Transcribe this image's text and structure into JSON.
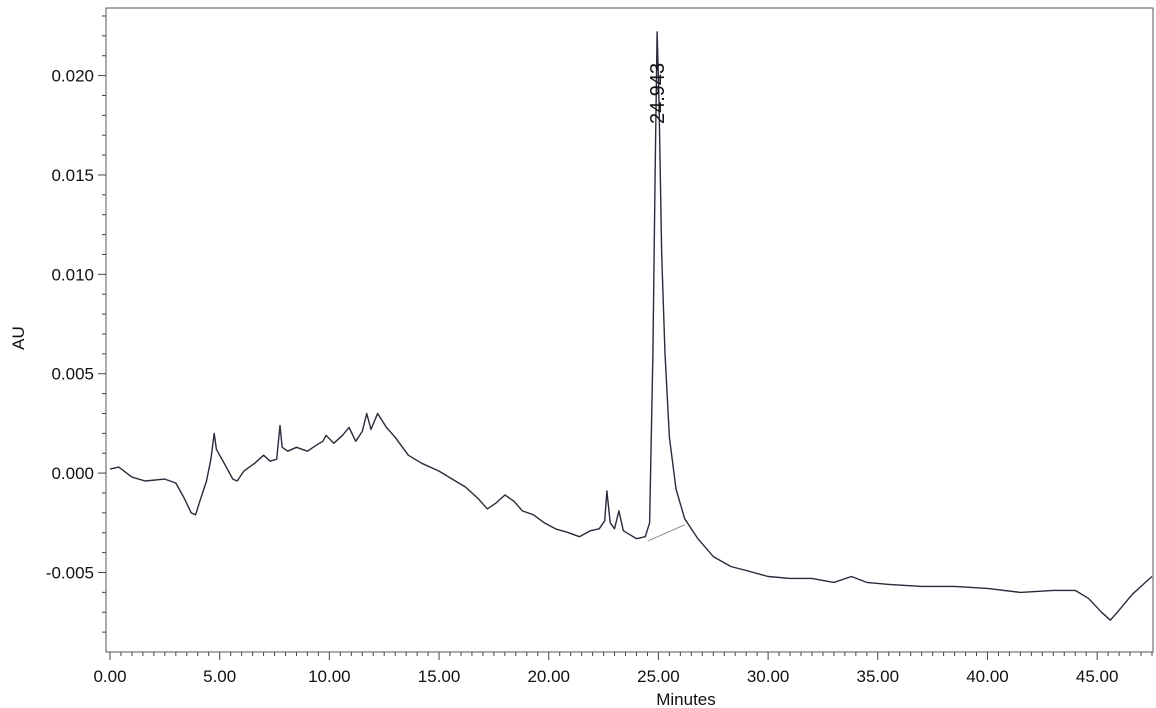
{
  "chart_data": {
    "type": "line",
    "title": "",
    "xlabel": "Minutes",
    "ylabel": "AU",
    "xlim": [
      0,
      47.5
    ],
    "ylim": [
      -0.0088,
      0.0232
    ],
    "x_ticks": [
      0,
      5,
      10,
      15,
      20,
      25,
      30,
      35,
      40,
      45
    ],
    "x_tick_labels": [
      "0.00",
      "5.00",
      "10.00",
      "15.00",
      "20.00",
      "25.00",
      "30.00",
      "35.00",
      "40.00",
      "45.00"
    ],
    "y_ticks": [
      -0.005,
      0,
      0.005,
      0.01,
      0.015,
      0.02
    ],
    "y_tick_labels": [
      "-0.005",
      "0.000",
      "0.005",
      "0.010",
      "0.015",
      "0.020"
    ],
    "grid": false,
    "legend": "none",
    "series": [
      {
        "color": "#2a2a3a",
        "points": [
          [
            0.0,
            0.0002
          ],
          [
            0.4,
            0.0003
          ],
          [
            1.0,
            -0.0002
          ],
          [
            1.6,
            -0.0004
          ],
          [
            2.5,
            -0.0003
          ],
          [
            3.0,
            -0.0005
          ],
          [
            3.4,
            -0.0013
          ],
          [
            3.7,
            -0.002
          ],
          [
            3.9,
            -0.0021
          ],
          [
            4.1,
            -0.0014
          ],
          [
            4.4,
            -0.0004
          ],
          [
            4.6,
            0.0007
          ],
          [
            4.75,
            0.002
          ],
          [
            4.85,
            0.0012
          ],
          [
            5.0,
            0.0009
          ],
          [
            5.3,
            0.0003
          ],
          [
            5.6,
            -0.0003
          ],
          [
            5.8,
            -0.0004
          ],
          [
            6.1,
            0.0001
          ],
          [
            6.6,
            0.0005
          ],
          [
            7.0,
            0.0009
          ],
          [
            7.3,
            0.0006
          ],
          [
            7.6,
            0.0007
          ],
          [
            7.75,
            0.0024
          ],
          [
            7.85,
            0.0013
          ],
          [
            8.1,
            0.0011
          ],
          [
            8.5,
            0.0013
          ],
          [
            9.0,
            0.0011
          ],
          [
            9.4,
            0.0014
          ],
          [
            9.7,
            0.0016
          ],
          [
            9.85,
            0.0019
          ],
          [
            10.2,
            0.0015
          ],
          [
            10.6,
            0.0019
          ],
          [
            10.9,
            0.0023
          ],
          [
            11.2,
            0.0016
          ],
          [
            11.5,
            0.0021
          ],
          [
            11.7,
            0.003
          ],
          [
            11.9,
            0.0022
          ],
          [
            12.2,
            0.003
          ],
          [
            12.6,
            0.0023
          ],
          [
            13.0,
            0.0018
          ],
          [
            13.6,
            0.0009
          ],
          [
            14.2,
            0.0005
          ],
          [
            15.0,
            0.0001
          ],
          [
            15.6,
            -0.0003
          ],
          [
            16.2,
            -0.0007
          ],
          [
            16.8,
            -0.0013
          ],
          [
            17.2,
            -0.0018
          ],
          [
            17.6,
            -0.0015
          ],
          [
            18.0,
            -0.0011
          ],
          [
            18.4,
            -0.0014
          ],
          [
            18.8,
            -0.0019
          ],
          [
            19.3,
            -0.0021
          ],
          [
            19.8,
            -0.0025
          ],
          [
            20.3,
            -0.0028
          ],
          [
            20.9,
            -0.003
          ],
          [
            21.4,
            -0.0032
          ],
          [
            21.9,
            -0.0029
          ],
          [
            22.3,
            -0.0028
          ],
          [
            22.55,
            -0.0024
          ],
          [
            22.65,
            -0.0009
          ],
          [
            22.8,
            -0.0025
          ],
          [
            23.0,
            -0.0028
          ],
          [
            23.2,
            -0.0019
          ],
          [
            23.4,
            -0.0029
          ],
          [
            23.7,
            -0.0031
          ],
          [
            24.0,
            -0.0033
          ],
          [
            24.4,
            -0.0032
          ],
          [
            24.6,
            -0.0025
          ],
          [
            24.75,
            0.006
          ],
          [
            24.85,
            0.015
          ],
          [
            24.94,
            0.0222
          ],
          [
            25.02,
            0.019
          ],
          [
            25.15,
            0.011
          ],
          [
            25.3,
            0.006
          ],
          [
            25.5,
            0.0018
          ],
          [
            25.8,
            -0.0008
          ],
          [
            26.2,
            -0.0023
          ],
          [
            26.8,
            -0.0033
          ],
          [
            27.5,
            -0.0042
          ],
          [
            28.3,
            -0.0047
          ],
          [
            29.0,
            -0.0049
          ],
          [
            30.0,
            -0.0052
          ],
          [
            31.0,
            -0.0053
          ],
          [
            32.0,
            -0.0053
          ],
          [
            33.0,
            -0.0055
          ],
          [
            33.8,
            -0.0052
          ],
          [
            34.5,
            -0.0055
          ],
          [
            35.5,
            -0.0056
          ],
          [
            37.0,
            -0.0057
          ],
          [
            38.5,
            -0.0057
          ],
          [
            40.0,
            -0.0058
          ],
          [
            41.5,
            -0.006
          ],
          [
            43.0,
            -0.0059
          ],
          [
            44.0,
            -0.0059
          ],
          [
            44.6,
            -0.0063
          ],
          [
            45.2,
            -0.007
          ],
          [
            45.6,
            -0.0074
          ],
          [
            46.0,
            -0.0069
          ],
          [
            46.6,
            -0.0061
          ],
          [
            47.2,
            -0.0055
          ],
          [
            47.5,
            -0.0052
          ]
        ]
      }
    ],
    "baseline_segments": [
      {
        "color": "#888888",
        "points": [
          [
            24.55,
            -0.0034
          ],
          [
            26.2,
            -0.0026
          ]
        ]
      }
    ],
    "annotations": [
      {
        "text": "24.943",
        "x": 24.943,
        "y": 0.0222
      }
    ]
  }
}
